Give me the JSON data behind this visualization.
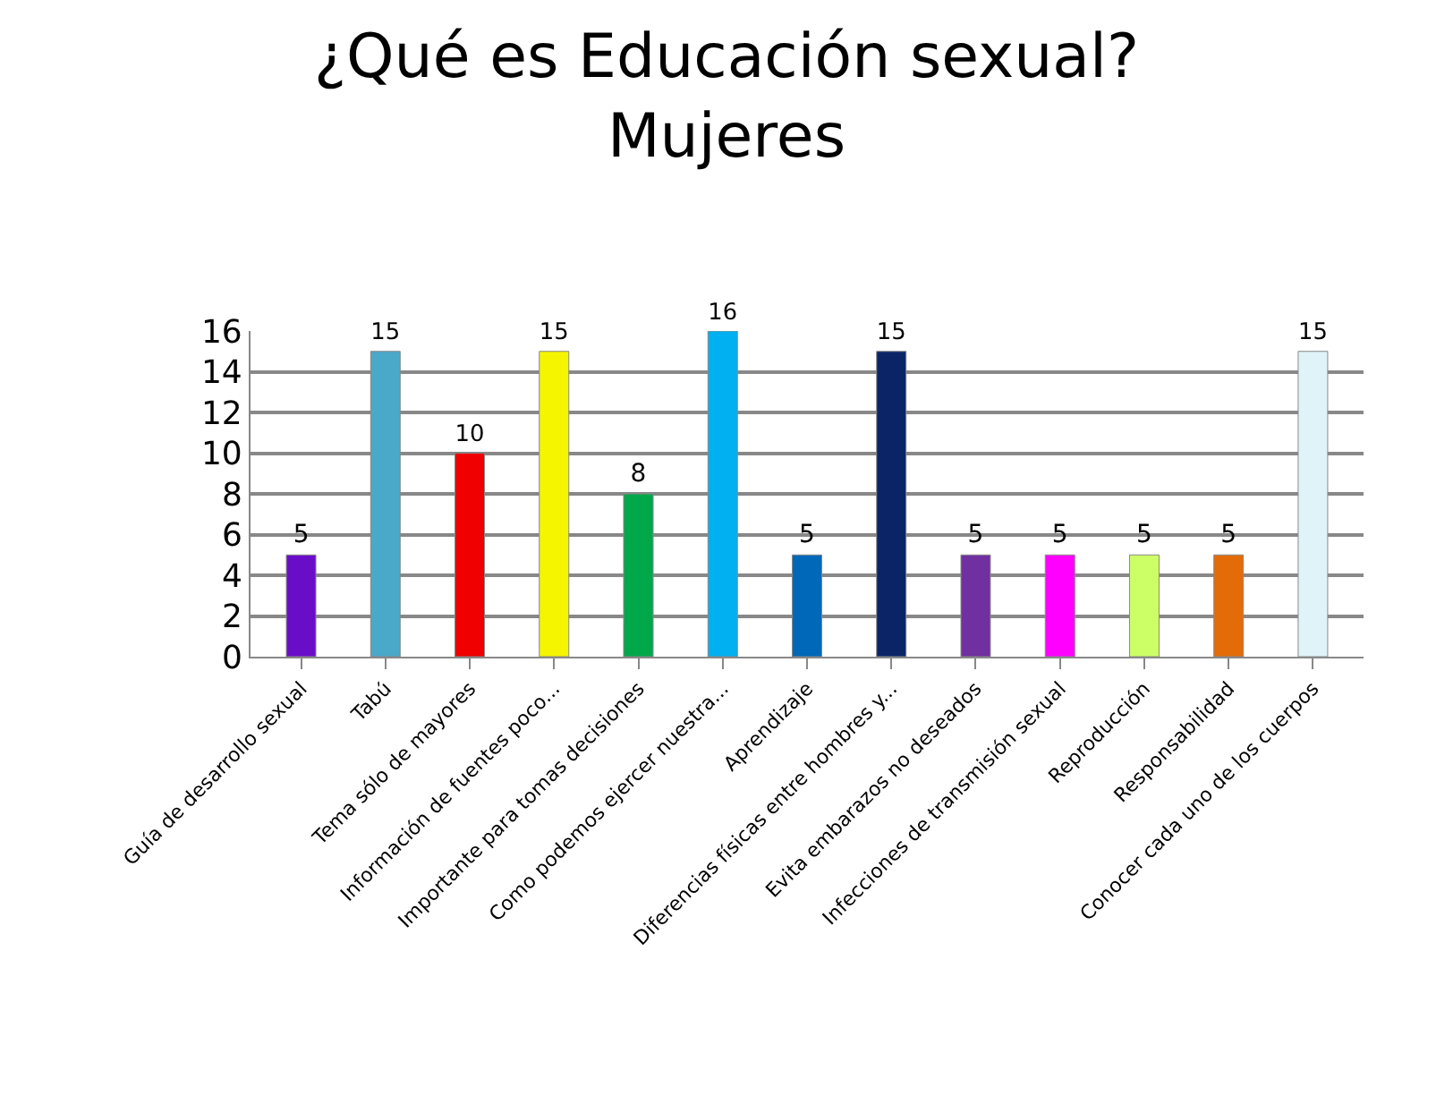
{
  "chart_data": {
    "type": "bar",
    "title": "¿Qué es Educación sexual?\nMujeres",
    "categories": [
      "Guía de desarrollo sexual",
      "Tabú",
      "Tema sólo de mayores",
      "Información de fuentes poco...",
      "Importante para tomas decisiones",
      "Como podemos ejercer nuestra...",
      "Aprendizaje",
      "Diferencias físicas entre hombres y...",
      "Evita embarazos no deseados",
      "Infecciones de transmisión sexual",
      "Reproducción",
      "Responsabilidad",
      "Conocer cada uno de los cuerpos"
    ],
    "values": [
      5,
      15,
      10,
      15,
      8,
      16,
      5,
      15,
      5,
      5,
      5,
      5,
      15
    ],
    "colors": [
      "#6a0dc9",
      "#4aa8c8",
      "#f00000",
      "#f5f500",
      "#00a84a",
      "#00b0f0",
      "#0068b8",
      "#0a2466",
      "#7030a0",
      "#ff00ff",
      "#ccff66",
      "#e36c09",
      "#dff3f8"
    ],
    "ylim": [
      0,
      16
    ],
    "yticks": [
      0,
      2,
      4,
      6,
      8,
      10,
      12,
      14,
      16
    ],
    "grid": "y",
    "data_labels": true
  }
}
